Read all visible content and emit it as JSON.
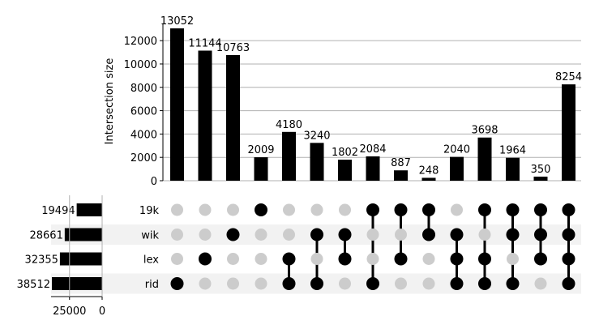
{
  "chart_data": {
    "type": "bar",
    "subtype": "upset",
    "ylabel": "Intersection size",
    "ylim": [
      0,
      13500
    ],
    "yticks": [
      0,
      2000,
      4000,
      6000,
      8000,
      10000,
      12000
    ],
    "grid": true,
    "sets": [
      {
        "name": "19k",
        "size": 19494
      },
      {
        "name": "wik",
        "size": 28661
      },
      {
        "name": "lex",
        "size": 32355
      },
      {
        "name": "rid",
        "size": 38512
      }
    ],
    "set_size_ticks": [
      25000,
      0
    ],
    "set_size_xlim": [
      0,
      40000
    ],
    "intersections": [
      {
        "value": 13052,
        "label": "13052",
        "members": [
          "rid"
        ]
      },
      {
        "value": 11144,
        "label": "11144",
        "members": [
          "lex"
        ]
      },
      {
        "value": 10763,
        "label": "10763",
        "members": [
          "wik"
        ]
      },
      {
        "value": 2009,
        "label": "2009",
        "members": [
          "19k"
        ]
      },
      {
        "value": 4180,
        "label": "4180",
        "members": [
          "lex",
          "rid"
        ]
      },
      {
        "value": 3240,
        "label": "3240",
        "members": [
          "wik",
          "rid"
        ]
      },
      {
        "value": 1802,
        "label": "1802",
        "members": [
          "wik",
          "lex"
        ]
      },
      {
        "value": 2084,
        "label": "2084",
        "members": [
          "19k",
          "rid"
        ]
      },
      {
        "value": 887,
        "label": "887",
        "members": [
          "19k",
          "lex"
        ]
      },
      {
        "value": 248,
        "label": "248",
        "members": [
          "19k",
          "wik"
        ]
      },
      {
        "value": 2040,
        "label": "2040",
        "members": [
          "wik",
          "lex",
          "rid"
        ]
      },
      {
        "value": 3698,
        "label": "3698",
        "members": [
          "19k",
          "lex",
          "rid"
        ]
      },
      {
        "value": 1964,
        "label": "1964",
        "members": [
          "19k",
          "wik",
          "rid"
        ]
      },
      {
        "value": 350,
        "label": "350",
        "members": [
          "19k",
          "wik",
          "lex"
        ]
      },
      {
        "value": 8254,
        "label": "8254",
        "members": [
          "19k",
          "wik",
          "lex",
          "rid"
        ]
      }
    ],
    "colors": {
      "bar": "#000000",
      "dot_active": "#000000",
      "dot_inactive": "#cccccc",
      "stripe": "#f2f2f2",
      "grid": "#b0b0b0"
    }
  }
}
